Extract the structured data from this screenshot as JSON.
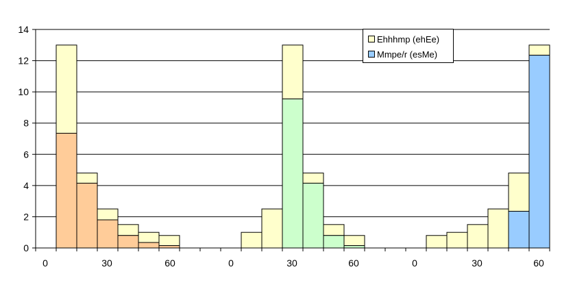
{
  "chart_data": {
    "type": "bar",
    "stacked": true,
    "grid": true,
    "legend_position": "top-right",
    "ylim": [
      0,
      14
    ],
    "yticks": [
      0,
      2,
      4,
      6,
      8,
      10,
      12,
      14
    ],
    "x_tick_labels": [
      "0",
      "30",
      "60",
      "0",
      "30",
      "60",
      "0",
      "30",
      "60"
    ],
    "legend": [
      {
        "label": "Ehhhmp (ehEe)",
        "color": "#ffffcc"
      },
      {
        "label": "Mmpe/r (esMe)",
        "color": "#99ccff"
      }
    ],
    "groups": [
      {
        "base_color": "#ffcc99",
        "bars": [
          {
            "lower": 7.35,
            "total": 13.0
          },
          {
            "lower": 4.15,
            "total": 4.8
          },
          {
            "lower": 1.8,
            "total": 2.5
          },
          {
            "lower": 0.8,
            "total": 1.5
          },
          {
            "lower": 0.35,
            "total": 1.0
          },
          {
            "lower": 0.15,
            "total": 0.8
          }
        ]
      },
      {
        "base_color": "#ccffcc",
        "bars": [
          {
            "lower": 0,
            "total": 1.0
          },
          {
            "lower": 0,
            "total": 2.5
          },
          {
            "lower": 9.55,
            "total": 13.0
          },
          {
            "lower": 4.15,
            "total": 4.8
          },
          {
            "lower": 0.8,
            "total": 1.5
          },
          {
            "lower": 0.15,
            "total": 0.8
          }
        ]
      },
      {
        "base_color": "#99ccff",
        "bars": [
          {
            "lower": 0,
            "total": 0.8
          },
          {
            "lower": 0,
            "total": 1.0
          },
          {
            "lower": 0,
            "total": 1.5
          },
          {
            "lower": 0,
            "total": 2.5
          },
          {
            "lower": 2.35,
            "total": 4.8
          },
          {
            "lower": 12.35,
            "total": 13.0
          }
        ]
      }
    ]
  }
}
